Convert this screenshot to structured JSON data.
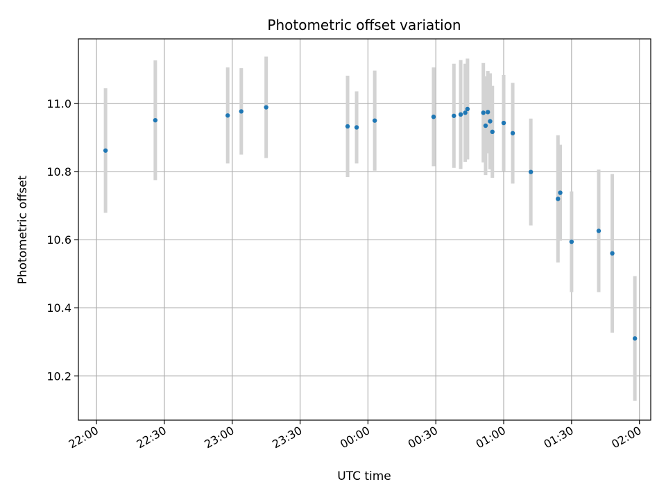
{
  "chart_data": {
    "type": "scatter",
    "title": "Photometric offset variation",
    "xlabel": "UTC time",
    "ylabel": "Photometric offset",
    "x_unit": "UTC clock time (HH:MM)",
    "xlim": [
      "21:52",
      "02:05"
    ],
    "ylim": [
      10.07,
      11.19
    ],
    "x_ticks": [
      "22:00",
      "22:30",
      "23:00",
      "23:30",
      "00:00",
      "00:30",
      "01:00",
      "01:30",
      "02:00"
    ],
    "y_ticks": [
      10.2,
      10.4,
      10.6,
      10.8,
      11.0
    ],
    "y_tick_labels": [
      "10.2",
      "10.4",
      "10.6",
      "10.8",
      "11.0"
    ],
    "grid": true,
    "point_color": "#1f77b4",
    "errorbar_color": "#d3d3d3",
    "series": [
      {
        "points": [
          {
            "x": "22:04",
            "y": 10.862,
            "err": 0.183
          },
          {
            "x": "22:26",
            "y": 10.951,
            "err": 0.176
          },
          {
            "x": "22:58",
            "y": 10.965,
            "err": 0.141
          },
          {
            "x": "23:04",
            "y": 10.977,
            "err": 0.127
          },
          {
            "x": "23:15",
            "y": 10.989,
            "err": 0.149
          },
          {
            "x": "23:51",
            "y": 10.933,
            "err": 0.149
          },
          {
            "x": "23:55",
            "y": 10.93,
            "err": 0.106
          },
          {
            "x": "00:03",
            "y": 10.95,
            "err": 0.147
          },
          {
            "x": "00:29",
            "y": 10.961,
            "err": 0.145
          },
          {
            "x": "00:38",
            "y": 10.964,
            "err": 0.153
          },
          {
            "x": "00:41",
            "y": 10.968,
            "err": 0.16
          },
          {
            "x": "00:43",
            "y": 10.973,
            "err": 0.144
          },
          {
            "x": "00:44",
            "y": 10.984,
            "err": 0.148
          },
          {
            "x": "00:51",
            "y": 10.973,
            "err": 0.146
          },
          {
            "x": "00:52",
            "y": 10.935,
            "err": 0.145
          },
          {
            "x": "00:53",
            "y": 10.975,
            "err": 0.121
          },
          {
            "x": "00:54",
            "y": 10.948,
            "err": 0.141
          },
          {
            "x": "00:55",
            "y": 10.917,
            "err": 0.135
          },
          {
            "x": "01:00",
            "y": 10.943,
            "err": 0.141
          },
          {
            "x": "01:04",
            "y": 10.913,
            "err": 0.148
          },
          {
            "x": "01:12",
            "y": 10.799,
            "err": 0.157
          },
          {
            "x": "01:24",
            "y": 10.72,
            "err": 0.187
          },
          {
            "x": "01:25",
            "y": 10.738,
            "err": 0.141
          },
          {
            "x": "01:30",
            "y": 10.594,
            "err": 0.148
          },
          {
            "x": "01:42",
            "y": 10.626,
            "err": 0.18
          },
          {
            "x": "01:48",
            "y": 10.56,
            "err": 0.233
          },
          {
            "x": "01:58",
            "y": 10.31,
            "err": 0.183
          }
        ]
      }
    ]
  }
}
